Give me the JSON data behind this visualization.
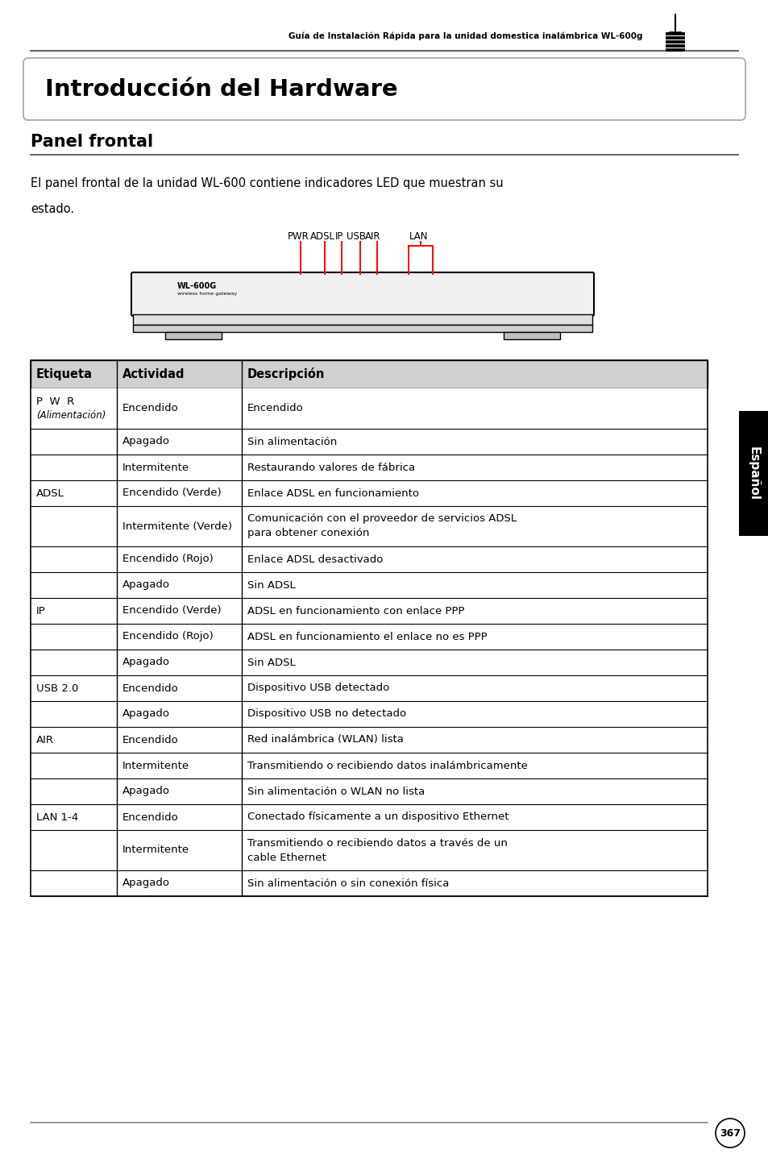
{
  "header_text": "Guía de Instalación Rápida para la unidad domestica inalámbrica WL-600g",
  "title_box": "Introducción del Hardware",
  "section_title": "Panel frontal",
  "intro_line1": "El panel frontal de la unidad WL-600 contiene indicadores LED que muestran su",
  "intro_line2": "estado.",
  "table_headers": [
    "Etiqueta",
    "Actividad",
    "Descripción"
  ],
  "table_rows": [
    [
      "P  W  R\n(Alimentación)",
      "Encendido",
      "Encendido"
    ],
    [
      "",
      "Apagado",
      "Sin alimentación"
    ],
    [
      "",
      "Intermitente",
      "Restaurando valores de fábrica"
    ],
    [
      "ADSL",
      "Encendido (Verde)",
      "Enlace ADSL en funcionamiento"
    ],
    [
      "",
      "Intermitente (Verde)",
      "Comunicación con el proveedor de servicios ADSL\npara obtener conexión"
    ],
    [
      "",
      "Encendido (Rojo)",
      "Enlace ADSL desactivado"
    ],
    [
      "",
      "Apagado",
      "Sin ADSL"
    ],
    [
      "IP",
      "Encendido (Verde)",
      "ADSL en funcionamiento con enlace PPP"
    ],
    [
      "",
      "Encendido (Rojo)",
      "ADSL en funcionamiento el enlace no es PPP"
    ],
    [
      "",
      "Apagado",
      "Sin ADSL"
    ],
    [
      "USB 2.0",
      "Encendido",
      "Dispositivo USB detectado"
    ],
    [
      "",
      "Apagado",
      "Dispositivo USB no detectado"
    ],
    [
      "AIR",
      "Encendido",
      "Red inalámbrica (WLAN) lista"
    ],
    [
      "",
      "Intermitente",
      "Transmitiendo o recibiendo datos inalámbricamente"
    ],
    [
      "",
      "Apagado",
      "Sin alimentación o WLAN no lista"
    ],
    [
      "LAN 1-4",
      "Encendido",
      "Conectado físicamente a un dispositivo Ethernet"
    ],
    [
      "",
      "Intermitente",
      "Transmitiendo o recibiendo datos a través de un\ncable Ethernet"
    ],
    [
      "",
      "Apagado",
      "Sin alimentación o sin conexión física"
    ]
  ],
  "page_number": "367",
  "espanol_label": "Español",
  "device_labels": [
    "PWR",
    "ADSL",
    "IP",
    "USB",
    "AIR",
    "LAN"
  ],
  "diagram_label": "WL-600G",
  "diagram_sublabel": "wireless home gateway"
}
